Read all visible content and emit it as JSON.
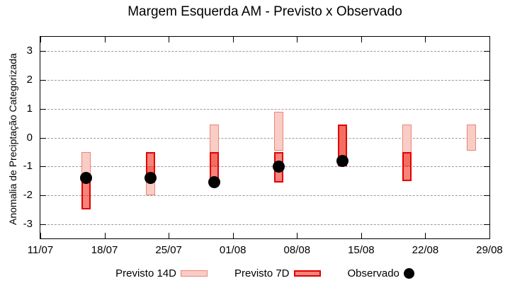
{
  "chart_data": {
    "type": "bar",
    "subtype": "forecast-range-candlesticks-with-observed-points",
    "title": "Margem Esquerda AM - Previsto x Observado",
    "xlabel": "",
    "ylabel": "Anomalia de Preciptação Categorizada",
    "ylim": [
      -3.5,
      3.5
    ],
    "yticks": [
      3,
      2,
      1,
      0,
      -1,
      -2,
      -3
    ],
    "grid": "horizontal-dashed",
    "x_range_days": 49,
    "xticks": [
      {
        "label": "11/07",
        "day": 0
      },
      {
        "label": "18/07",
        "day": 7
      },
      {
        "label": "25/07",
        "day": 14
      },
      {
        "label": "01/08",
        "day": 21
      },
      {
        "label": "08/08",
        "day": 28
      },
      {
        "label": "15/08",
        "day": 35
      },
      {
        "label": "22/08",
        "day": 42
      },
      {
        "label": "29/08",
        "day": 49
      }
    ],
    "points": [
      {
        "date": "16/07",
        "day": 5,
        "previsto14": [
          -0.5,
          -1.5
        ],
        "previsto7": [
          -1.5,
          -2.5
        ],
        "observado": -1.4
      },
      {
        "date": "23/07",
        "day": 12,
        "previsto14": [
          -1.0,
          -2.0
        ],
        "previsto7": [
          -0.5,
          -1.5
        ],
        "observado": -1.4
      },
      {
        "date": "30/07",
        "day": 19,
        "previsto14": [
          0.45,
          -1.0
        ],
        "previsto7": [
          -0.5,
          -1.5
        ],
        "observado": -1.55
      },
      {
        "date": "06/08",
        "day": 26,
        "previsto14": [
          0.9,
          -0.45
        ],
        "previsto7": [
          -0.5,
          -1.55
        ],
        "observado": -1.0
      },
      {
        "date": "13/08",
        "day": 33,
        "previsto14": [
          0.45,
          -1.0
        ],
        "previsto7": [
          0.45,
          -1.0
        ],
        "observado": -0.8
      },
      {
        "date": "20/08",
        "day": 40,
        "previsto14": [
          0.45,
          -1.0
        ],
        "previsto7": [
          -0.5,
          -1.5
        ],
        "observado": null
      },
      {
        "date": "27/08",
        "day": 47,
        "previsto14": [
          0.45,
          -0.45
        ],
        "previsto7": null,
        "observado": null
      }
    ],
    "legend": {
      "position": "bottom",
      "previsto14": "Previsto 14D",
      "previsto7": "Previsto 7D",
      "observado": "Observado"
    },
    "colors": {
      "p14fill": "#f8cdc6",
      "p14border": "#ef8376",
      "p7fill": "rgba(240,35,20,0.56)",
      "p7border": "#e10000",
      "obs": "#000000",
      "grid": "#9b9b9b",
      "axis": "#000000"
    }
  }
}
